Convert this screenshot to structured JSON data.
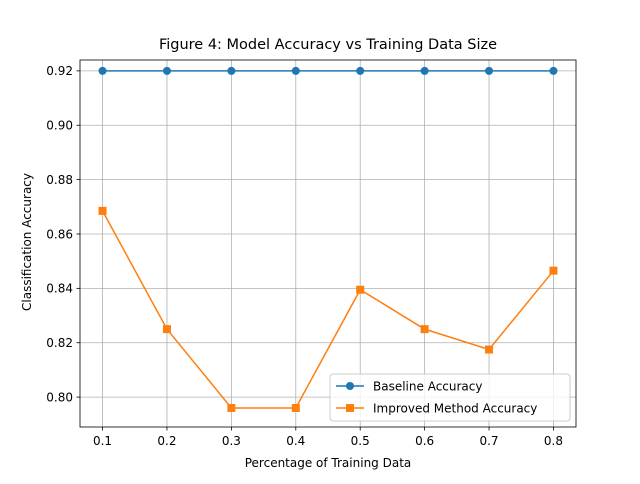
{
  "chart_data": {
    "type": "line",
    "title": "Figure 4: Model Accuracy vs Training Data Size",
    "xlabel": "Percentage of Training Data",
    "ylabel": "Classification Accuracy",
    "x": [
      0.1,
      0.2,
      0.3,
      0.4,
      0.5,
      0.6,
      0.7,
      0.8
    ],
    "x_ticks": [
      "0.1",
      "0.2",
      "0.3",
      "0.4",
      "0.5",
      "0.6",
      "0.7",
      "0.8"
    ],
    "y_ticks": [
      0.8,
      0.82,
      0.84,
      0.86,
      0.88,
      0.9,
      0.92
    ],
    "y_tick_labels": [
      "0.80",
      "0.82",
      "0.84",
      "0.86",
      "0.88",
      "0.90",
      "0.92"
    ],
    "xlim": [
      0.065,
      0.835
    ],
    "ylim": [
      0.789,
      0.924
    ],
    "grid": true,
    "legend_position": "lower-right",
    "series": [
      {
        "name": "Baseline Accuracy",
        "color": "#1f77b4",
        "marker": "circle",
        "values": [
          0.92,
          0.92,
          0.92,
          0.92,
          0.92,
          0.92,
          0.92,
          0.92
        ]
      },
      {
        "name": "Improved Method Accuracy",
        "color": "#ff7f0e",
        "marker": "square",
        "values": [
          0.8685,
          0.825,
          0.796,
          0.796,
          0.8395,
          0.825,
          0.8175,
          0.8465
        ]
      }
    ]
  }
}
